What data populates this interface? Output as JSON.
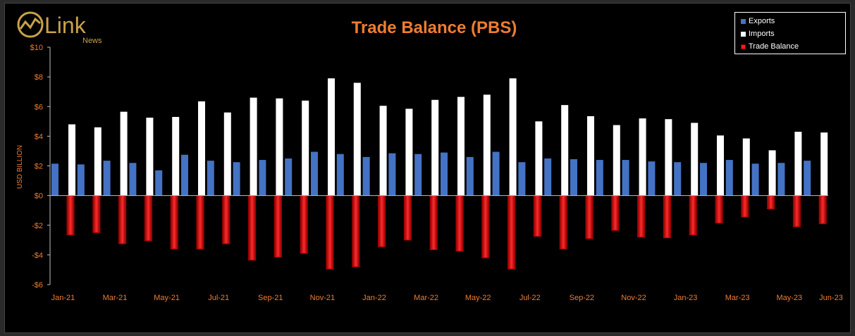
{
  "brand": {
    "name": "Link",
    "sub": "News"
  },
  "legend": [
    {
      "name": "Exports",
      "color": "#4472c4"
    },
    {
      "name": "Imports",
      "color": "#ffffff"
    },
    {
      "name": "Trade Balance",
      "color": "#ff1a1a"
    }
  ],
  "chart_data": {
    "type": "bar",
    "title": "Trade Balance (PBS)",
    "ylabel": "USD BILLION",
    "ylim": [
      -6,
      10
    ],
    "y_ticks": [
      -6,
      -4,
      -2,
      0,
      2,
      4,
      6,
      8,
      10
    ],
    "y_tick_labels": [
      "-$6",
      "-$4",
      "-$2",
      "$0",
      "$2",
      "$4",
      "$6",
      "$8",
      "$10"
    ],
    "x_tick_labels": [
      "Jan-21",
      "Mar-21",
      "May-21",
      "Jul-21",
      "Sep-21",
      "Nov-21",
      "Jan-22",
      "Mar-22",
      "May-22",
      "Jul-22",
      "Sep-22",
      "Nov-22",
      "Jan-23",
      "Mar-23",
      "May-23",
      "Jun-23"
    ],
    "categories": [
      "Jan-21",
      "Feb-21",
      "Mar-21",
      "Apr-21",
      "May-21",
      "Jun-21",
      "Jul-21",
      "Aug-21",
      "Sep-21",
      "Oct-21",
      "Nov-21",
      "Dec-21",
      "Jan-22",
      "Feb-22",
      "Mar-22",
      "Apr-22",
      "May-22",
      "Jun-22",
      "Jul-22",
      "Aug-22",
      "Sep-22",
      "Oct-22",
      "Nov-22",
      "Dec-22",
      "Jan-23",
      "Feb-23",
      "Mar-23",
      "Apr-23",
      "May-23",
      "Jun-23"
    ],
    "series": [
      {
        "name": "Exports",
        "color": "#4472c4",
        "values": [
          2.15,
          2.1,
          2.35,
          2.2,
          1.7,
          2.75,
          2.35,
          2.25,
          2.4,
          2.5,
          2.95,
          2.8,
          2.6,
          2.85,
          2.8,
          2.9,
          2.6,
          2.95,
          2.25,
          2.5,
          2.45,
          2.4,
          2.4,
          2.3,
          2.25,
          2.2,
          2.4,
          2.15,
          2.2,
          2.35
        ]
      },
      {
        "name": "Imports",
        "color": "#ffffff",
        "values": [
          4.8,
          4.6,
          5.65,
          5.25,
          5.3,
          6.35,
          5.6,
          6.6,
          6.55,
          6.4,
          7.9,
          7.6,
          6.05,
          5.85,
          6.45,
          6.65,
          6.8,
          7.9,
          5.0,
          6.1,
          5.35,
          4.75,
          5.2,
          5.15,
          4.9,
          4.05,
          3.85,
          3.05,
          4.3,
          4.25
        ]
      },
      {
        "name": "Trade Balance",
        "color": "#ff1a1a",
        "values": [
          -2.65,
          -2.5,
          -3.25,
          -3.05,
          -3.6,
          -3.6,
          -3.25,
          -4.35,
          -4.15,
          -3.9,
          -4.95,
          -4.8,
          -3.45,
          -3.0,
          -3.65,
          -3.75,
          -4.2,
          -4.95,
          -2.75,
          -3.6,
          -2.9,
          -2.35,
          -2.8,
          -2.85,
          -2.65,
          -1.85,
          -1.45,
          -0.9,
          -2.1,
          -1.9
        ]
      }
    ],
    "grid": false,
    "legend_position": "top-right"
  }
}
